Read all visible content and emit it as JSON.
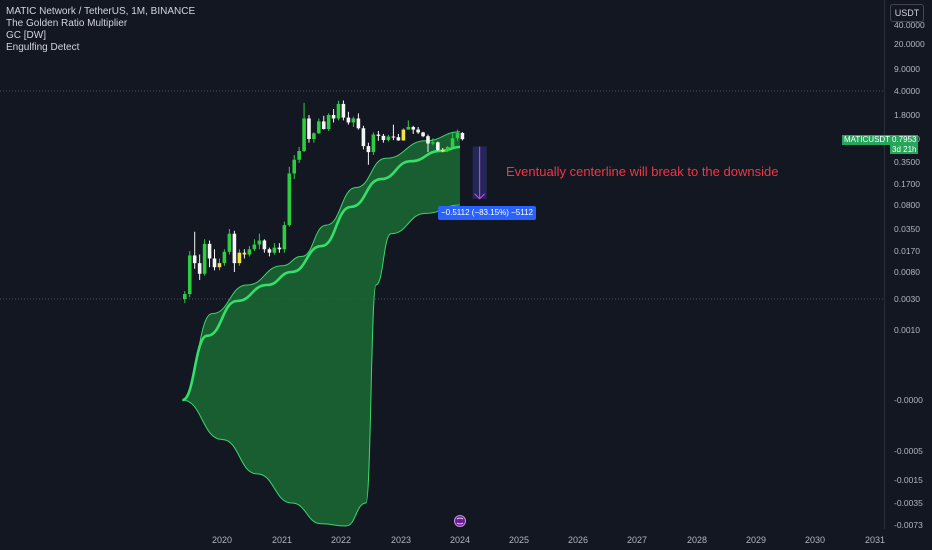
{
  "legend": {
    "symbol_line": "MATIC Network / TetherUS, 1M, BINANCE",
    "indicator1": "The Golden Ratio Multiplier",
    "indicator2": "GC [DW]",
    "indicator3": "Engulfing Detect"
  },
  "currency_label": "USDT",
  "price_tag": {
    "symbol": "MATICUSDT",
    "price": "0.7953",
    "countdown": "3d 21h"
  },
  "annotation_text": "Eventually centerline will break to the downside",
  "measure_label": "−0.5112 (−83.15%) −5112",
  "chart_data": {
    "type": "candlestick",
    "title": "",
    "scale": "pseudo-log",
    "y_tick_labels": [
      "40.0000",
      "20.0000",
      "9.0000",
      "4.0000",
      "1.8000",
      "0.8000",
      "0.3500",
      "0.1700",
      "0.0800",
      "0.0350",
      "0.0170",
      "0.0080",
      "0.0030",
      "0.0010",
      "-0.0000",
      "-0.0005",
      "-0.0015",
      "-0.0035",
      "-0.0073"
    ],
    "x_tick_labels": [
      "2020",
      "2021",
      "2022",
      "2023",
      "2024",
      "2025",
      "2026",
      "2027",
      "2028",
      "2029",
      "2030",
      "2031"
    ],
    "candles": [
      {
        "d": "2019-05",
        "o": 0.003,
        "h": 0.004,
        "l": 0.0026,
        "c": 0.0036
      },
      {
        "d": "2019-06",
        "o": 0.0036,
        "h": 0.017,
        "l": 0.0032,
        "c": 0.0145
      },
      {
        "d": "2019-07",
        "o": 0.0145,
        "h": 0.032,
        "l": 0.009,
        "c": 0.011
      },
      {
        "d": "2019-08",
        "o": 0.011,
        "h": 0.015,
        "l": 0.006,
        "c": 0.0075
      },
      {
        "d": "2019-09",
        "o": 0.0075,
        "h": 0.025,
        "l": 0.007,
        "c": 0.0215
      },
      {
        "d": "2019-10",
        "o": 0.0215,
        "h": 0.024,
        "l": 0.0095,
        "c": 0.013
      },
      {
        "d": "2019-11",
        "o": 0.013,
        "h": 0.018,
        "l": 0.0085,
        "c": 0.0095
      },
      {
        "d": "2019-12",
        "o": 0.0095,
        "h": 0.013,
        "l": 0.0085,
        "c": 0.011
      },
      {
        "d": "2020-01",
        "o": 0.011,
        "h": 0.018,
        "l": 0.01,
        "c": 0.0165
      },
      {
        "d": "2020-02",
        "o": 0.0165,
        "h": 0.035,
        "l": 0.015,
        "c": 0.03
      },
      {
        "d": "2020-03",
        "o": 0.03,
        "h": 0.033,
        "l": 0.008,
        "c": 0.011
      },
      {
        "d": "2020-04",
        "o": 0.011,
        "h": 0.018,
        "l": 0.01,
        "c": 0.016
      },
      {
        "d": "2020-05",
        "o": 0.016,
        "h": 0.018,
        "l": 0.013,
        "c": 0.015
      },
      {
        "d": "2020-06",
        "o": 0.015,
        "h": 0.02,
        "l": 0.014,
        "c": 0.018
      },
      {
        "d": "2020-07",
        "o": 0.018,
        "h": 0.025,
        "l": 0.017,
        "c": 0.021
      },
      {
        "d": "2020-08",
        "o": 0.021,
        "h": 0.03,
        "l": 0.018,
        "c": 0.024
      },
      {
        "d": "2020-09",
        "o": 0.024,
        "h": 0.025,
        "l": 0.016,
        "c": 0.018
      },
      {
        "d": "2020-10",
        "o": 0.018,
        "h": 0.019,
        "l": 0.014,
        "c": 0.016
      },
      {
        "d": "2020-11",
        "o": 0.016,
        "h": 0.022,
        "l": 0.015,
        "c": 0.019
      },
      {
        "d": "2020-12",
        "o": 0.019,
        "h": 0.022,
        "l": 0.016,
        "c": 0.018
      },
      {
        "d": "2021-01",
        "o": 0.018,
        "h": 0.045,
        "l": 0.016,
        "c": 0.04
      },
      {
        "d": "2021-02",
        "o": 0.04,
        "h": 0.3,
        "l": 0.038,
        "c": 0.24
      },
      {
        "d": "2021-03",
        "o": 0.24,
        "h": 0.45,
        "l": 0.2,
        "c": 0.38
      },
      {
        "d": "2021-04",
        "o": 0.38,
        "h": 0.6,
        "l": 0.34,
        "c": 0.52
      },
      {
        "d": "2021-05",
        "o": 0.52,
        "h": 2.7,
        "l": 0.5,
        "c": 1.6
      },
      {
        "d": "2021-06",
        "o": 1.6,
        "h": 1.8,
        "l": 0.7,
        "c": 0.8
      },
      {
        "d": "2021-07",
        "o": 0.8,
        "h": 1.0,
        "l": 0.7,
        "c": 0.97
      },
      {
        "d": "2021-08",
        "o": 0.97,
        "h": 1.6,
        "l": 0.95,
        "c": 1.45
      },
      {
        "d": "2021-09",
        "o": 1.45,
        "h": 1.75,
        "l": 1.1,
        "c": 1.12
      },
      {
        "d": "2021-10",
        "o": 1.12,
        "h": 1.9,
        "l": 1.05,
        "c": 1.8
      },
      {
        "d": "2021-11",
        "o": 1.8,
        "h": 2.2,
        "l": 1.4,
        "c": 1.6
      },
      {
        "d": "2021-12",
        "o": 1.6,
        "h": 2.9,
        "l": 1.5,
        "c": 2.6
      },
      {
        "d": "2022-01",
        "o": 2.6,
        "h": 2.92,
        "l": 1.5,
        "c": 1.65
      },
      {
        "d": "2022-02",
        "o": 1.65,
        "h": 2.0,
        "l": 1.3,
        "c": 1.4
      },
      {
        "d": "2022-03",
        "o": 1.4,
        "h": 1.7,
        "l": 1.2,
        "c": 1.6
      },
      {
        "d": "2022-04",
        "o": 1.6,
        "h": 1.9,
        "l": 1.1,
        "c": 1.15
      },
      {
        "d": "2022-05",
        "o": 1.15,
        "h": 1.25,
        "l": 0.55,
        "c": 0.62
      },
      {
        "d": "2022-06",
        "o": 0.62,
        "h": 0.7,
        "l": 0.32,
        "c": 0.5
      },
      {
        "d": "2022-07",
        "o": 0.5,
        "h": 1.0,
        "l": 0.45,
        "c": 0.93
      },
      {
        "d": "2022-08",
        "o": 0.93,
        "h": 1.05,
        "l": 0.75,
        "c": 0.89
      },
      {
        "d": "2022-09",
        "o": 0.89,
        "h": 0.95,
        "l": 0.7,
        "c": 0.77
      },
      {
        "d": "2022-10",
        "o": 0.77,
        "h": 0.92,
        "l": 0.73,
        "c": 0.87
      },
      {
        "d": "2022-11",
        "o": 0.87,
        "h": 1.3,
        "l": 0.77,
        "c": 0.85
      },
      {
        "d": "2022-12",
        "o": 0.85,
        "h": 0.95,
        "l": 0.75,
        "c": 0.76
      },
      {
        "d": "2023-01",
        "o": 0.76,
        "h": 1.15,
        "l": 0.75,
        "c": 1.1
      },
      {
        "d": "2023-02",
        "o": 1.1,
        "h": 1.5,
        "l": 1.1,
        "c": 1.2
      },
      {
        "d": "2023-03",
        "o": 1.2,
        "h": 1.25,
        "l": 0.95,
        "c": 1.1
      },
      {
        "d": "2023-04",
        "o": 1.1,
        "h": 1.2,
        "l": 0.95,
        "c": 1.0
      },
      {
        "d": "2023-05",
        "o": 1.0,
        "h": 1.02,
        "l": 0.85,
        "c": 0.88
      },
      {
        "d": "2023-06",
        "o": 0.88,
        "h": 0.93,
        "l": 0.5,
        "c": 0.68
      },
      {
        "d": "2023-07",
        "o": 0.68,
        "h": 0.82,
        "l": 0.64,
        "c": 0.71
      },
      {
        "d": "2023-08",
        "o": 0.71,
        "h": 0.73,
        "l": 0.52,
        "c": 0.54
      },
      {
        "d": "2023-09",
        "o": 0.54,
        "h": 0.58,
        "l": 0.5,
        "c": 0.52
      },
      {
        "d": "2023-10",
        "o": 0.52,
        "h": 0.62,
        "l": 0.5,
        "c": 0.6
      },
      {
        "d": "2023-11",
        "o": 0.6,
        "h": 0.97,
        "l": 0.59,
        "c": 0.82
      },
      {
        "d": "2023-12",
        "o": 0.82,
        "h": 1.1,
        "l": 0.75,
        "c": 0.98
      },
      {
        "d": "2024-01",
        "o": 0.98,
        "h": 1.01,
        "l": 0.76,
        "c": 0.7953
      }
    ],
    "centerline": [
      {
        "d": "2019-05",
        "v": -0.0
      },
      {
        "d": "2019-10",
        "v": 0.0008
      },
      {
        "d": "2020-04",
        "v": 0.0028
      },
      {
        "d": "2020-10",
        "v": 0.005
      },
      {
        "d": "2021-03",
        "v": 0.008
      },
      {
        "d": "2021-09",
        "v": 0.02
      },
      {
        "d": "2022-03",
        "v": 0.075
      },
      {
        "d": "2022-09",
        "v": 0.2
      },
      {
        "d": "2023-03",
        "v": 0.36
      },
      {
        "d": "2023-09",
        "v": 0.52
      },
      {
        "d": "2024-01",
        "v": 0.6
      }
    ],
    "upper_band": [
      {
        "d": "2019-05",
        "v": -0.0
      },
      {
        "d": "2019-11",
        "v": 0.0018
      },
      {
        "d": "2020-06",
        "v": 0.005
      },
      {
        "d": "2021-01",
        "v": 0.01
      },
      {
        "d": "2021-05",
        "v": 0.014
      },
      {
        "d": "2021-10",
        "v": 0.04
      },
      {
        "d": "2022-04",
        "v": 0.15
      },
      {
        "d": "2022-10",
        "v": 0.4
      },
      {
        "d": "2023-06",
        "v": 0.75
      },
      {
        "d": "2024-01",
        "v": 1.02
      }
    ],
    "lower_band": [
      {
        "d": "2019-05",
        "v": -0.0
      },
      {
        "d": "2020-01",
        "v": -0.0003
      },
      {
        "d": "2020-08",
        "v": -0.0012
      },
      {
        "d": "2021-03",
        "v": -0.0035
      },
      {
        "d": "2021-09",
        "v": -0.007
      },
      {
        "d": "2022-02",
        "v": -0.008
      },
      {
        "d": "2022-06",
        "v": -0.0035
      },
      {
        "d": "2022-08",
        "v": 0.005
      },
      {
        "d": "2022-11",
        "v": 0.03
      },
      {
        "d": "2023-06",
        "v": 0.06
      },
      {
        "d": "2024-01",
        "v": 0.08
      }
    ],
    "dotted_levels": [
      4.0,
      0.003
    ],
    "measure": {
      "from": {
        "d": "2024-05",
        "v": 0.61
      },
      "to": {
        "d": "2024-05",
        "v": 0.1
      }
    },
    "colors": {
      "background": "#131722",
      "up": "#2ecc40",
      "down": "#f5f5f5",
      "centerline": "#34e06a",
      "band_fill": "#1b6b33",
      "band_stroke": "#3dd56d",
      "yellow": "#f0e442",
      "annotation": "#f23645",
      "measure_box": "#2c2e6e",
      "measure_arrow": "#e040fb",
      "measure_label_bg": "#2962ff"
    }
  }
}
